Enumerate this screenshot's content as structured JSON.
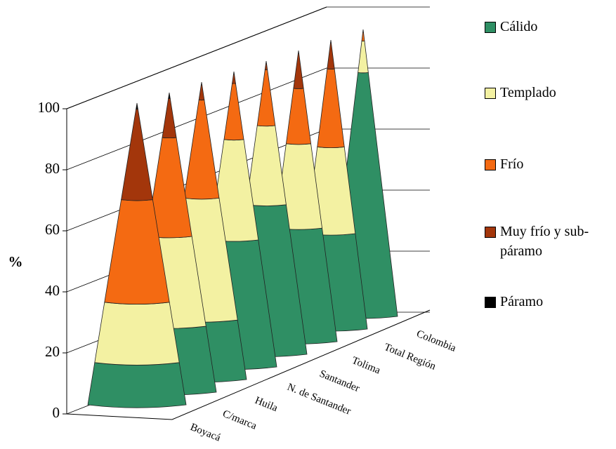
{
  "chart_data": {
    "type": "cone3d",
    "y_label": "%",
    "categories": [
      "Boyacá",
      "C/marca",
      "Huila",
      "N. de Santander",
      "Santander",
      "Tolima",
      "Total Región",
      "Colombia"
    ],
    "series": [
      {
        "name": "Cálido",
        "color": "#2f8f64",
        "values": [
          14,
          22,
          20,
          43,
          51,
          39,
          33,
          85
        ]
      },
      {
        "name": "Templado",
        "color": "#f3f1a2",
        "values": [
          20,
          30,
          41,
          34,
          27,
          29,
          30,
          11
        ]
      },
      {
        "name": "Frío",
        "color": "#f46a12",
        "values": [
          34,
          33,
          33,
          19,
          19,
          19,
          27,
          3
        ]
      },
      {
        "name": "Muy frío y sub-páramo",
        "color": "#a3360b",
        "values": [
          30,
          13,
          5,
          3,
          2,
          12,
          9,
          1
        ]
      },
      {
        "name": "Páramo",
        "color": "#000000",
        "values": [
          2,
          2,
          1,
          1,
          1,
          1,
          1,
          0
        ]
      }
    ],
    "ylim": [
      0,
      100
    ],
    "yticks": [
      0,
      20,
      40,
      60,
      80,
      100
    ],
    "grid": true,
    "legend": "right"
  }
}
